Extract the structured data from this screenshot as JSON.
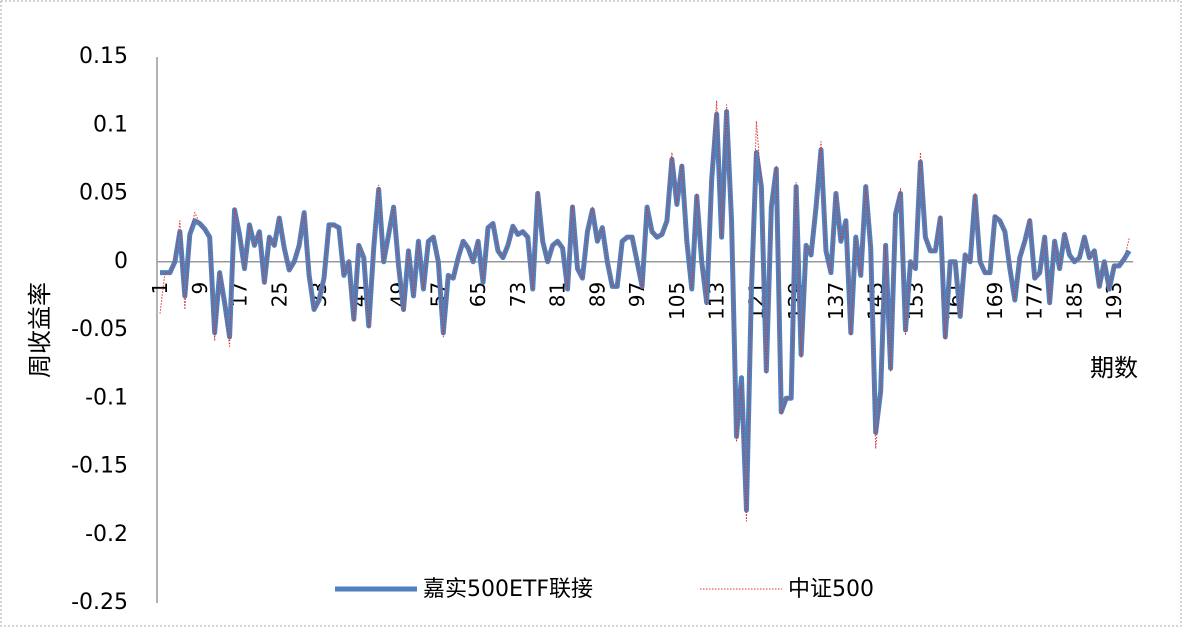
{
  "chart_data": {
    "type": "line",
    "y_label": "周收益率",
    "x_label": "期数",
    "categories": [
      "1",
      null,
      null,
      null,
      null,
      null,
      null,
      null,
      "9",
      null,
      null,
      null,
      null,
      null,
      null,
      null,
      "17",
      null,
      null,
      null,
      null,
      null,
      null,
      null,
      "25",
      null,
      null,
      null,
      null,
      null,
      null,
      null,
      "33",
      null,
      null,
      null,
      null,
      null,
      null,
      null,
      "41",
      null,
      null,
      null,
      null,
      null,
      null,
      null,
      "49",
      null,
      null,
      null,
      null,
      null,
      null,
      null,
      "57",
      null,
      null,
      null,
      null,
      null,
      null,
      null,
      "65",
      null,
      null,
      null,
      null,
      null,
      null,
      null,
      "73",
      null,
      null,
      null,
      null,
      null,
      null,
      null,
      "81",
      null,
      null,
      null,
      null,
      null,
      null,
      null,
      "89",
      null,
      null,
      null,
      null,
      null,
      null,
      null,
      "97",
      null,
      null,
      null,
      null,
      null,
      null,
      null,
      "105",
      null,
      null,
      null,
      null,
      null,
      null,
      null,
      "113",
      null,
      null,
      null,
      null,
      null,
      null,
      null,
      "121",
      null,
      null,
      null,
      null,
      null,
      null,
      null,
      "129",
      null,
      null,
      null,
      null,
      null,
      null,
      null,
      "137",
      null,
      null,
      null,
      null,
      null,
      null,
      null,
      "145",
      null,
      null,
      null,
      null,
      null,
      null,
      null,
      "153",
      null,
      null,
      null,
      null,
      null,
      null,
      null,
      "161",
      null,
      null,
      null,
      null,
      null,
      null,
      null,
      "169",
      null,
      null,
      null,
      null,
      null,
      null,
      null,
      "177",
      null,
      null,
      null,
      null,
      null,
      null,
      null,
      "185",
      null,
      null,
      null,
      null,
      null,
      null,
      null,
      "193",
      null,
      null,
      null
    ],
    "series": [
      {
        "name": "嘉实500ETF联接",
        "color": "#4f81bd",
        "style": "solid",
        "values": [
          -0.008,
          -0.008,
          -0.008,
          0.0,
          0.022,
          -0.025,
          0.02,
          0.03,
          0.028,
          0.024,
          0.018,
          -0.052,
          -0.008,
          -0.03,
          -0.055,
          0.038,
          0.02,
          -0.005,
          0.027,
          0.012,
          0.022,
          -0.015,
          0.018,
          0.012,
          0.032,
          0.01,
          -0.006,
          0.0,
          0.012,
          0.036,
          -0.01,
          -0.035,
          -0.028,
          -0.012,
          0.027,
          0.027,
          0.025,
          -0.01,
          0.0,
          -0.042,
          0.012,
          0.003,
          -0.047,
          0.01,
          0.053,
          0.0,
          0.02,
          0.04,
          -0.003,
          -0.035,
          0.008,
          -0.025,
          0.015,
          -0.02,
          0.015,
          0.018,
          0.0,
          -0.052,
          -0.01,
          -0.012,
          0.003,
          0.015,
          0.01,
          0.0,
          0.015,
          -0.015,
          0.025,
          0.028,
          0.008,
          0.003,
          0.012,
          0.026,
          0.02,
          0.022,
          0.018,
          -0.02,
          0.05,
          0.015,
          0.0,
          0.012,
          0.015,
          0.01,
          -0.02,
          0.04,
          -0.005,
          -0.012,
          0.022,
          0.038,
          0.015,
          0.025,
          0.0,
          -0.018,
          -0.018,
          0.015,
          0.018,
          0.018,
          0.0,
          -0.018,
          0.04,
          0.022,
          0.018,
          0.02,
          0.03,
          0.075,
          0.042,
          0.07,
          0.015,
          -0.02,
          0.048,
          0.0,
          -0.03,
          0.06,
          0.108,
          0.018,
          0.11,
          0.03,
          -0.128,
          -0.085,
          -0.182,
          -0.02,
          0.08,
          0.055,
          -0.08,
          0.04,
          0.068,
          -0.11,
          -0.1,
          -0.1,
          0.055,
          -0.068,
          0.012,
          0.005,
          0.04,
          0.082,
          0.008,
          -0.008,
          0.05,
          0.015,
          0.03,
          -0.052,
          0.018,
          -0.01,
          0.055,
          0.01,
          -0.125,
          -0.095,
          0.012,
          -0.078,
          0.035,
          0.05,
          -0.05,
          0.0,
          -0.005,
          0.073,
          0.018,
          0.008,
          0.008,
          0.032,
          -0.055,
          0.0,
          0.0,
          -0.04,
          0.005,
          0.0,
          0.048,
          0.0,
          -0.008,
          -0.008,
          0.033,
          0.03,
          0.022,
          -0.005,
          -0.028,
          0.003,
          0.015,
          0.03,
          -0.012,
          -0.008,
          0.018,
          -0.03,
          0.015,
          -0.005,
          0.02,
          0.005,
          0.0,
          0.003,
          0.018,
          0.003,
          0.008,
          -0.018,
          0.0,
          -0.02,
          -0.003,
          -0.003,
          0.002,
          0.008
        ]
      },
      {
        "name": "中证500",
        "color": "#e03030",
        "style": "dotted",
        "values": [
          -0.038,
          -0.008,
          -0.008,
          0.0,
          0.03,
          -0.035,
          0.02,
          0.036,
          0.028,
          0.024,
          0.018,
          -0.058,
          -0.008,
          -0.03,
          -0.062,
          0.04,
          0.02,
          -0.005,
          0.027,
          0.012,
          0.022,
          -0.017,
          0.018,
          0.012,
          0.032,
          0.01,
          -0.006,
          0.0,
          0.012,
          0.036,
          -0.01,
          -0.035,
          -0.028,
          -0.012,
          0.027,
          0.027,
          0.025,
          -0.01,
          0.0,
          -0.044,
          0.012,
          0.003,
          -0.048,
          0.01,
          0.056,
          0.0,
          0.02,
          0.04,
          -0.003,
          -0.036,
          0.008,
          -0.025,
          0.015,
          -0.02,
          0.015,
          0.018,
          0.0,
          -0.055,
          -0.01,
          -0.012,
          0.003,
          0.015,
          0.01,
          0.0,
          0.015,
          -0.015,
          0.025,
          0.028,
          0.008,
          0.003,
          0.012,
          0.026,
          0.02,
          0.022,
          0.018,
          -0.02,
          0.052,
          0.015,
          0.0,
          0.012,
          0.015,
          0.01,
          -0.02,
          0.042,
          -0.005,
          -0.012,
          0.022,
          0.04,
          0.015,
          0.025,
          0.0,
          -0.018,
          -0.018,
          0.015,
          0.018,
          0.018,
          0.0,
          -0.02,
          0.04,
          0.022,
          0.018,
          0.02,
          0.03,
          0.08,
          0.042,
          0.072,
          0.015,
          -0.02,
          0.05,
          0.0,
          -0.03,
          0.062,
          0.118,
          0.018,
          0.115,
          0.03,
          -0.132,
          -0.088,
          -0.19,
          -0.02,
          0.103,
          0.055,
          -0.082,
          0.04,
          0.07,
          -0.112,
          -0.1,
          -0.1,
          0.058,
          -0.07,
          0.012,
          0.005,
          0.04,
          0.088,
          0.008,
          -0.008,
          0.05,
          0.015,
          0.03,
          -0.054,
          0.018,
          -0.01,
          0.056,
          0.01,
          -0.137,
          -0.095,
          0.012,
          -0.08,
          0.035,
          0.054,
          -0.054,
          0.0,
          -0.005,
          0.08,
          0.018,
          0.008,
          0.008,
          0.034,
          -0.057,
          0.0,
          0.0,
          -0.04,
          0.005,
          0.0,
          0.05,
          0.0,
          -0.008,
          -0.008,
          0.034,
          0.03,
          0.022,
          -0.005,
          -0.028,
          0.003,
          0.015,
          0.032,
          -0.012,
          -0.008,
          0.018,
          -0.03,
          0.015,
          -0.005,
          0.02,
          0.005,
          0.0,
          0.003,
          0.018,
          0.003,
          0.008,
          -0.018,
          0.0,
          -0.02,
          -0.003,
          -0.003,
          0.002,
          0.017
        ]
      }
    ],
    "ylim": [
      -0.25,
      0.15
    ],
    "yticks": [
      0.15,
      0.1,
      0.05,
      0,
      -0.05,
      -0.1,
      -0.15,
      -0.2,
      -0.25
    ],
    "grid": false,
    "legend": "bottom"
  }
}
